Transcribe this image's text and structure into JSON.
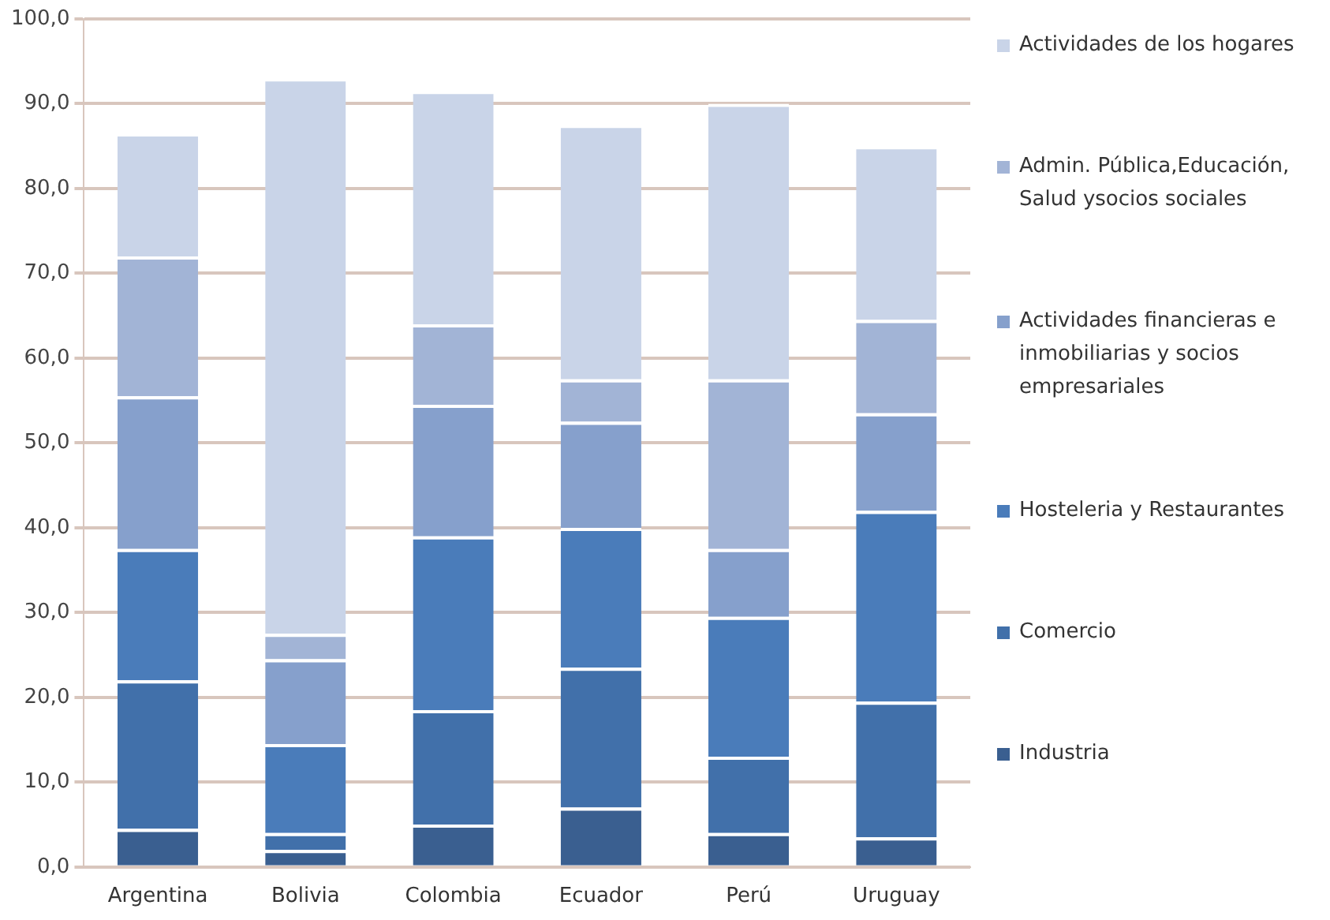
{
  "chart_data": {
    "type": "bar",
    "stacked": true,
    "categories": [
      "Argentina",
      "Bolivia",
      "Colombia",
      "Ecuador",
      "Perú",
      "Uruguay"
    ],
    "series": [
      {
        "name": "Industria",
        "color": "#3a5f90",
        "values": [
          4.5,
          2,
          5,
          7,
          4,
          3.5
        ]
      },
      {
        "name": "Comercio",
        "color": "#4170aa",
        "values": [
          17.5,
          2,
          13.5,
          16.5,
          9,
          16
        ]
      },
      {
        "name": "Hosteleria y Restaurantes",
        "color": "#4a7cba",
        "values": [
          15.5,
          10.5,
          20.5,
          16.5,
          16.5,
          22.5
        ]
      },
      {
        "name": "Actividades financieras e inmobiliarias y socios empresariales",
        "color": "#86a0cc",
        "values": [
          18,
          10,
          15.5,
          12.5,
          8,
          11.5
        ]
      },
      {
        "name": "Admin. Pública,Educación, Salud ysocios sociales",
        "color": "#a2b4d6",
        "values": [
          16.5,
          3,
          9.5,
          5,
          20,
          11
        ]
      },
      {
        "name": "Actividades de los hogares",
        "color": "#c9d4e8",
        "values": [
          14.5,
          65.5,
          27.5,
          30,
          32.5,
          20.5
        ]
      }
    ],
    "ylim": [
      0,
      100
    ],
    "yticks": [
      {
        "value": 0,
        "label": "0,0"
      },
      {
        "value": 10,
        "label": "10,0"
      },
      {
        "value": 20,
        "label": "20,0"
      },
      {
        "value": 30,
        "label": "30,0"
      },
      {
        "value": 40,
        "label": "40,0"
      },
      {
        "value": 50,
        "label": "50,0"
      },
      {
        "value": 60,
        "label": "60,0"
      },
      {
        "value": 70,
        "label": "70,0"
      },
      {
        "value": 80,
        "label": "80,0"
      },
      {
        "value": 90,
        "label": "90,0"
      },
      {
        "value": 100,
        "label": "100,0"
      }
    ],
    "grid": "y",
    "legend": "right"
  }
}
